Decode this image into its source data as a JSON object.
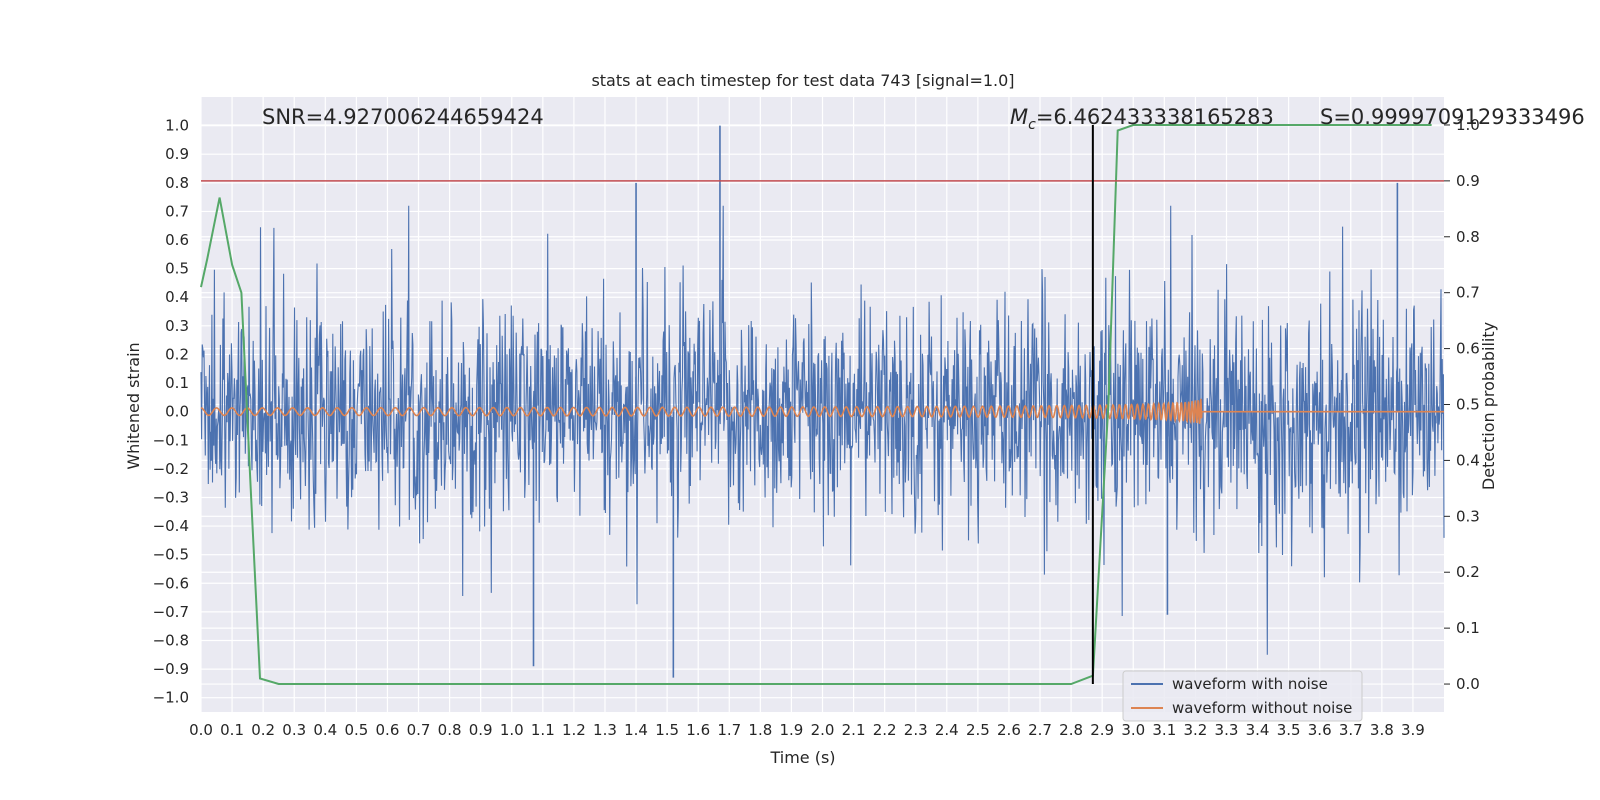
{
  "chart_data": {
    "type": "line",
    "title": "stats at each timestep for test data 743 [signal=1.0]",
    "xlabel": "Time (s)",
    "ylabel": "Whitened strain",
    "y2label": "Detection probability",
    "xlim": [
      0.0,
      4.0
    ],
    "ylim": [
      -1.05,
      1.1
    ],
    "y2lim": [
      -0.05,
      1.05
    ],
    "x_ticks": [
      "0.0",
      "0.1",
      "0.2",
      "0.3",
      "0.4",
      "0.5",
      "0.6",
      "0.7",
      "0.8",
      "0.9",
      "1.0",
      "1.1",
      "1.2",
      "1.3",
      "1.4",
      "1.5",
      "1.6",
      "1.7",
      "1.8",
      "1.9",
      "2.0",
      "2.1",
      "2.2",
      "2.3",
      "2.4",
      "2.5",
      "2.6",
      "2.7",
      "2.8",
      "2.9",
      "3.0",
      "3.1",
      "3.2",
      "3.3",
      "3.4",
      "3.5",
      "3.6",
      "3.7",
      "3.8",
      "3.9"
    ],
    "y_ticks": [
      "1.0",
      "0.9",
      "0.8",
      "0.7",
      "0.6",
      "0.5",
      "0.4",
      "0.3",
      "0.2",
      "0.1",
      "0.0",
      "−0.1",
      "−0.2",
      "−0.3",
      "−0.4",
      "−0.5",
      "−0.6",
      "−0.7",
      "−0.8",
      "−0.9",
      "−1.0"
    ],
    "y2_ticks": [
      "1.0",
      "0.9",
      "0.8",
      "0.7",
      "0.6",
      "0.5",
      "0.4",
      "0.3",
      "0.2",
      "0.1",
      "0.0"
    ],
    "annotations": {
      "snr": "SNR=4.927006244659424",
      "mc_symbol": "M",
      "mc_sub": "c",
      "mc_value": "=6.462433338165283",
      "s": "S=0.9999709129333496"
    },
    "threshold_line": {
      "y2": 0.9,
      "color": "#c44e52"
    },
    "merger_time_line": {
      "x": 2.87,
      "color": "#000000"
    },
    "series": [
      {
        "name": "waveform with noise",
        "color": "#4c72b0",
        "kind": "noise",
        "samples": 2048,
        "std": 0.19,
        "range": [
          -1.0,
          1.0
        ],
        "spikes": [
          {
            "x": 1.67,
            "y": 1.0
          },
          {
            "x": 1.4,
            "y": 0.8
          },
          {
            "x": 3.85,
            "y": 0.8
          },
          {
            "x": 1.52,
            "y": -0.93
          },
          {
            "x": 1.07,
            "y": -0.89
          },
          {
            "x": 3.11,
            "y": -0.71
          }
        ]
      },
      {
        "name": "waveform without noise",
        "color": "#dd8452",
        "kind": "chirp",
        "samples": 3200,
        "start_freq": 20,
        "end_time": 3.22,
        "start_amp": 0.013,
        "end_amp": 0.09
      },
      {
        "name": "detection probability",
        "axis": "y2",
        "color": "#55a868",
        "kind": "line",
        "x": [
          0.0,
          0.02,
          0.06,
          0.1,
          0.13,
          0.16,
          0.19,
          0.25,
          0.5,
          1.0,
          1.5,
          2.0,
          2.5,
          2.8,
          2.87,
          2.92,
          2.95,
          3.0,
          3.3,
          3.6,
          3.96
        ],
        "y": [
          0.71,
          0.76,
          0.87,
          0.75,
          0.7,
          0.35,
          0.01,
          0.0,
          0.0,
          0.0,
          0.0,
          0.0,
          0.0,
          0.0,
          0.015,
          0.5,
          0.99,
          1.0,
          1.0,
          1.0,
          1.0
        ]
      }
    ],
    "legend": {
      "position": "lower-right",
      "entries": [
        "waveform with noise",
        "waveform without noise"
      ]
    },
    "colors": {
      "background": "#eaeaf2",
      "grid": "#ffffff",
      "text": "#262626"
    }
  }
}
